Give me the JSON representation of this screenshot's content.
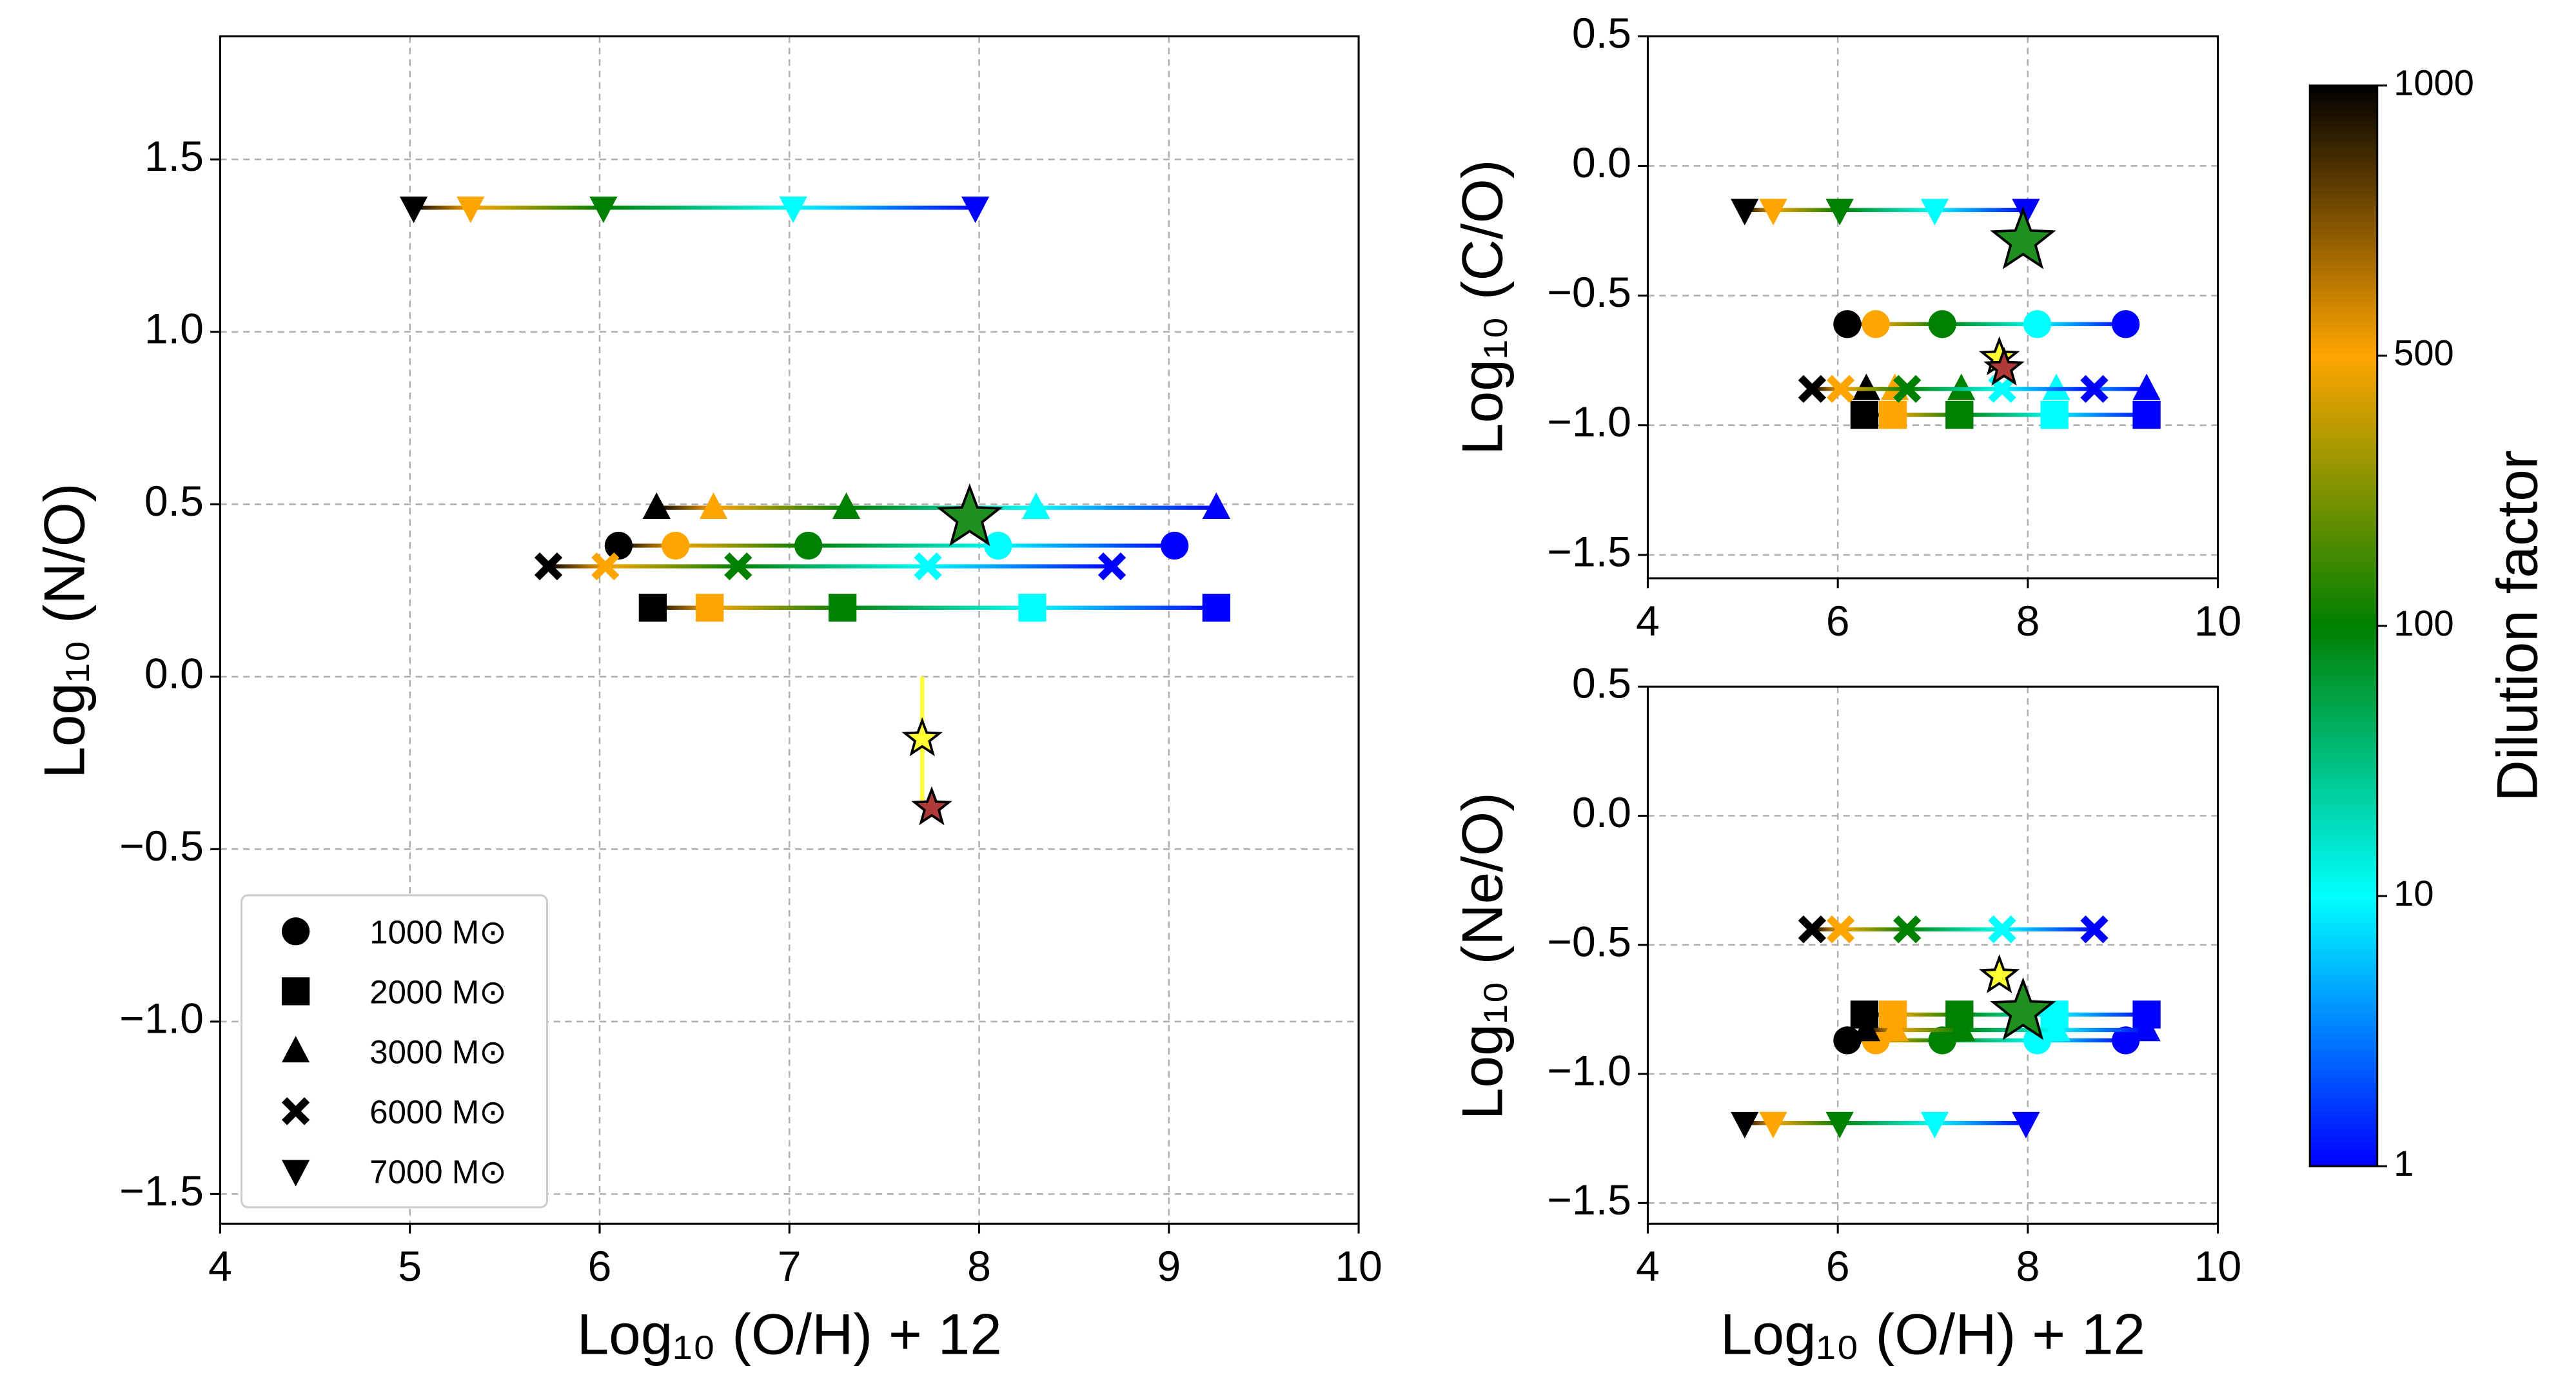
{
  "chart_data": [
    {
      "type": "scatter",
      "xlabel": "Log₁₀ (O/H) + 12",
      "ylabel": "Log₁₀ (N/O)",
      "xlim": [
        4,
        10
      ],
      "xticks": [
        4,
        5,
        6,
        7,
        8,
        9,
        10
      ],
      "ylim": [
        -1.586,
        1.857
      ],
      "yticks": [
        {
          "value": -1.5,
          "label": "−1.5"
        },
        {
          "value": -1.0,
          "label": "−1.0"
        },
        {
          "value": -0.5,
          "label": "−0.5"
        },
        {
          "value": 0,
          "label": "0.0"
        },
        0.5,
        {
          "value": 1.0,
          "label": "1.0"
        },
        1.5
      ],
      "grid": true,
      "legend": "lower left",
      "series": [
        {
          "name": "1000 M⊙",
          "marker": "circle",
          "x": [
            6.1,
            6.4,
            7.1,
            8.1,
            9.03
          ],
          "y": [
            0.38,
            0.38,
            0.38,
            0.38,
            0.38
          ]
        },
        {
          "name": "2000 M⊙",
          "marker": "square",
          "x": [
            6.28,
            6.58,
            7.28,
            8.28,
            9.25
          ],
          "y": [
            0.2,
            0.2,
            0.2,
            0.2,
            0.2
          ]
        },
        {
          "name": "3000 M⊙",
          "marker": "triangle",
          "x": [
            6.3,
            6.6,
            7.3,
            8.3,
            9.25
          ],
          "y": [
            0.49,
            0.49,
            0.49,
            0.49,
            0.49
          ]
        },
        {
          "name": "6000 M⊙",
          "marker": "x",
          "x": [
            5.73,
            6.03,
            6.73,
            7.73,
            8.7
          ],
          "y": [
            0.32,
            0.32,
            0.32,
            0.32,
            0.32
          ]
        },
        {
          "name": "7000 M⊙",
          "marker": "down",
          "x": [
            5.02,
            5.32,
            6.02,
            7.02,
            7.98
          ],
          "y": [
            1.36,
            1.36,
            1.36,
            1.36,
            1.36
          ]
        }
      ],
      "observed": [
        {
          "x": 7.95,
          "y": 0.46,
          "color": "#1f8f1f",
          "size": "large"
        },
        {
          "x": 7.7,
          "y": -0.18,
          "yerr": 0.18,
          "color": "#ffff33",
          "size": "small"
        },
        {
          "x": 7.75,
          "y": -0.38,
          "color": "#b03a3a",
          "size": "small"
        }
      ]
    },
    {
      "type": "scatter",
      "ylabel": "Log₁₀ (C/O)",
      "xlim": [
        4,
        10
      ],
      "xticks": [
        4,
        6,
        8,
        10
      ],
      "ylim": [
        -1.59,
        0.5
      ],
      "yticks": [
        {
          "value": -1.5,
          "label": "−1.5"
        },
        {
          "value": -1.0,
          "label": "−1.0"
        },
        {
          "value": -0.5,
          "label": "−0.5"
        },
        {
          "value": 0,
          "label": "0.0"
        },
        0.5
      ],
      "grid": true,
      "series": [
        {
          "marker": "circle",
          "x": [
            6.1,
            6.4,
            7.1,
            8.1,
            9.03
          ],
          "y": [
            -0.61,
            -0.61,
            -0.61,
            -0.61,
            -0.61
          ]
        },
        {
          "marker": "square",
          "x": [
            6.28,
            6.58,
            7.28,
            8.28,
            9.25
          ],
          "y": [
            -0.96,
            -0.96,
            -0.96,
            -0.96,
            -0.96
          ]
        },
        {
          "marker": "triangle",
          "x": [
            6.3,
            6.6,
            7.3,
            8.3,
            9.25
          ],
          "y": [
            -0.86,
            -0.86,
            -0.86,
            -0.86,
            -0.86
          ]
        },
        {
          "marker": "x",
          "x": [
            5.73,
            6.03,
            6.73,
            7.73,
            8.7
          ],
          "y": [
            -0.86,
            -0.86,
            -0.86,
            -0.86,
            -0.86
          ]
        },
        {
          "marker": "down",
          "x": [
            5.02,
            5.32,
            6.02,
            7.02,
            7.98
          ],
          "y": [
            -0.17,
            -0.17,
            -0.17,
            -0.17,
            -0.17
          ]
        }
      ],
      "observed": [
        {
          "x": 7.95,
          "y": -0.29,
          "color": "#1f8f1f",
          "size": "large"
        },
        {
          "x": 7.7,
          "y": -0.74,
          "color": "#ffff33",
          "size": "small"
        },
        {
          "x": 7.75,
          "y": -0.78,
          "color": "#b03a3a",
          "size": "small"
        }
      ]
    },
    {
      "type": "scatter",
      "xlabel": "Log₁₀ (O/H) + 12",
      "ylabel": "Log₁₀ (Ne/O)",
      "xlim": [
        4,
        10
      ],
      "xticks": [
        4,
        6,
        8,
        10
      ],
      "ylim": [
        -1.58,
        0.5
      ],
      "yticks": [
        {
          "value": -1.5,
          "label": "−1.5"
        },
        {
          "value": -1.0,
          "label": "−1.0"
        },
        {
          "value": -0.5,
          "label": "−0.5"
        },
        {
          "value": 0,
          "label": "0.0"
        },
        0.5
      ],
      "grid": true,
      "series": [
        {
          "marker": "circle",
          "x": [
            6.1,
            6.4,
            7.1,
            8.1,
            9.03
          ],
          "y": [
            -0.87,
            -0.87,
            -0.87,
            -0.87,
            -0.87
          ]
        },
        {
          "marker": "square",
          "x": [
            6.28,
            6.58,
            7.28,
            8.28,
            9.25
          ],
          "y": [
            -0.77,
            -0.77,
            -0.77,
            -0.77,
            -0.77
          ]
        },
        {
          "marker": "triangle",
          "x": [
            6.3,
            6.6,
            7.3,
            8.3,
            9.25
          ],
          "y": [
            -0.83,
            -0.83,
            -0.83,
            -0.83,
            -0.83
          ]
        },
        {
          "marker": "x",
          "x": [
            5.73,
            6.03,
            6.73,
            7.73,
            8.7
          ],
          "y": [
            -0.44,
            -0.44,
            -0.44,
            -0.44,
            -0.44
          ]
        },
        {
          "marker": "down",
          "x": [
            5.02,
            5.32,
            6.02,
            7.02,
            7.98
          ],
          "y": [
            -1.19,
            -1.19,
            -1.19,
            -1.19,
            -1.19
          ]
        }
      ],
      "observed": [
        {
          "x": 7.95,
          "y": -0.76,
          "color": "#1f8f1f",
          "size": "large"
        },
        {
          "x": 7.7,
          "y": -0.62,
          "color": "#ffff33",
          "size": "small"
        }
      ]
    }
  ],
  "colorbar": {
    "label": "Dilution factor",
    "ticks": [
      1000,
      500,
      100,
      10,
      1
    ],
    "colors": [
      "#000000",
      "#ffa500",
      "#008000",
      "#00ffff",
      "#0000ff"
    ]
  }
}
